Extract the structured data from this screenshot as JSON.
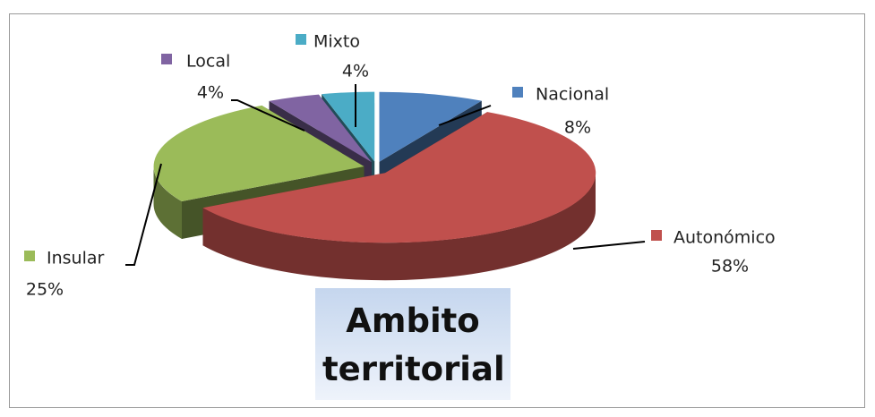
{
  "chart_data": {
    "type": "pie3d",
    "title": "Ambito territorial",
    "categories": [
      "Nacional",
      "Autonómico",
      "Insular",
      "Local",
      "Mixto"
    ],
    "values": [
      8,
      58,
      25,
      4,
      4
    ],
    "value_labels": [
      "8%",
      "58%",
      "25%",
      "4%",
      "4%"
    ],
    "colors": [
      "#4f81bd",
      "#c0504d",
      "#9bbb59",
      "#8064a2",
      "#4bacc6"
    ]
  }
}
